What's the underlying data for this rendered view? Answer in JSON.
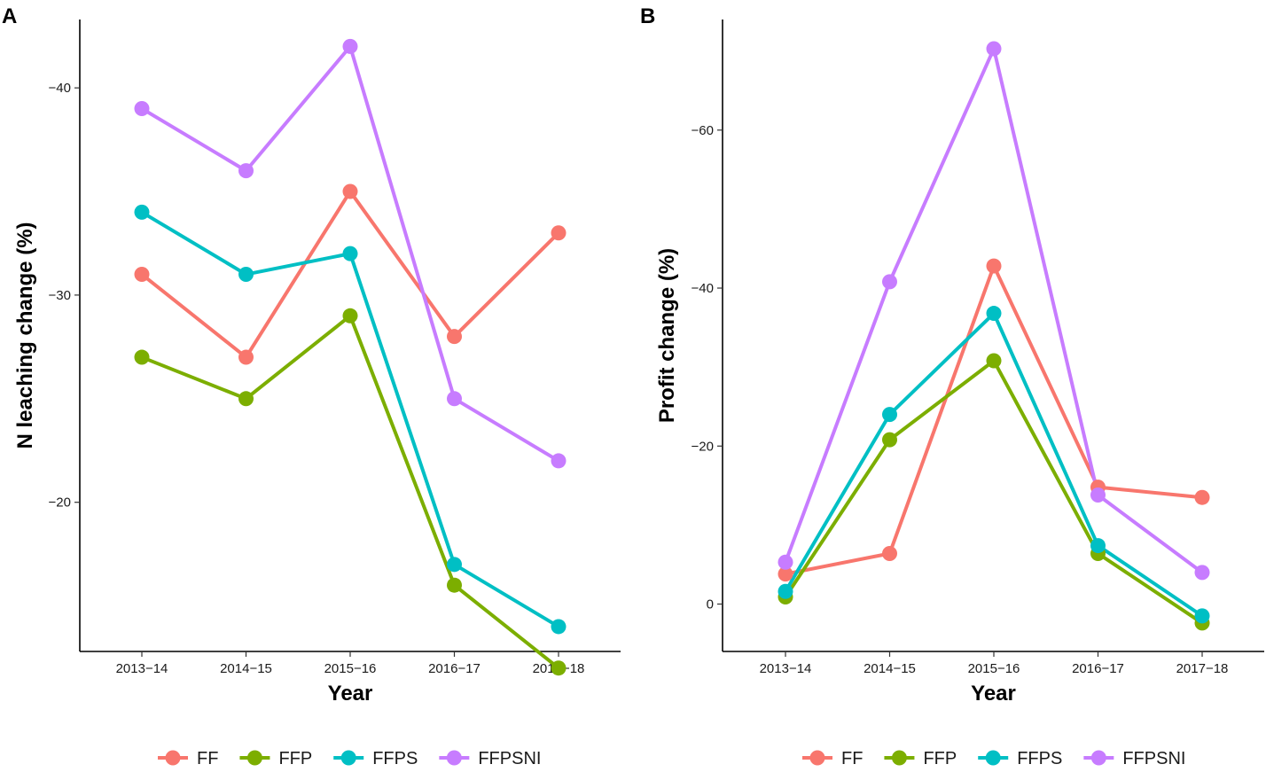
{
  "chart_data": [
    {
      "panel": "A",
      "type": "line",
      "xlabel": "Year",
      "ylabel": "N leaching change (%)",
      "y_reversed": true,
      "ylim": [
        -12.8,
        -43.3
      ],
      "yticks": [
        -40,
        -30,
        -20
      ],
      "categories": [
        "2013−14",
        "2014−15",
        "2015−16",
        "2016−17",
        "2017−18"
      ],
      "series": [
        {
          "name": "FF",
          "color": "#F8766D",
          "values": [
            -31,
            -27,
            -35,
            -28,
            -33
          ]
        },
        {
          "name": "FFP",
          "color": "#7CAE00",
          "values": [
            -27,
            -25,
            -29,
            -16,
            -12
          ]
        },
        {
          "name": "FFPS",
          "color": "#00BFC4",
          "values": [
            -34,
            -31,
            -32,
            -17,
            -14
          ]
        },
        {
          "name": "FFPSNI",
          "color": "#C77CFF",
          "values": [
            -39,
            -36,
            -42,
            -25,
            -22
          ]
        }
      ],
      "legend": [
        "FF",
        "FFP",
        "FFPS",
        "FFPSNI"
      ],
      "legend_position": "bottom"
    },
    {
      "panel": "B",
      "type": "line",
      "xlabel": "Year",
      "ylabel": "Profit change (%)",
      "y_reversed": true,
      "ylim": [
        6,
        -74
      ],
      "yticks": [
        0,
        -20,
        -40,
        -60
      ],
      "categories": [
        "2013−14",
        "2014−15",
        "2015−16",
        "2016−17",
        "2017−18"
      ],
      "series": [
        {
          "name": "FF",
          "color": "#F8766D",
          "values": [
            -3.8,
            -6.4,
            -42.8,
            -14.8,
            -13.5
          ]
        },
        {
          "name": "FFP",
          "color": "#7CAE00",
          "values": [
            -0.9,
            -20.8,
            -30.8,
            -6.4,
            2.4
          ]
        },
        {
          "name": "FFPS",
          "color": "#00BFC4",
          "values": [
            -1.6,
            -24.0,
            -36.8,
            -7.4,
            1.5
          ]
        },
        {
          "name": "FFPSNI",
          "color": "#C77CFF",
          "values": [
            -5.3,
            -40.8,
            -70.3,
            -13.8,
            -4.0
          ]
        }
      ],
      "legend": [
        "FF",
        "FFP",
        "FFPS",
        "FFPSNI"
      ],
      "legend_position": "bottom"
    }
  ]
}
